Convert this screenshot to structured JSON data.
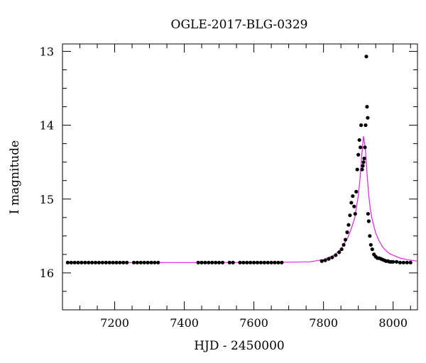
{
  "chart_data": {
    "type": "scatter",
    "title": "OGLE-2017-BLG-0329",
    "xlabel": "HJD - 2450000",
    "ylabel": "I magnitude",
    "xlim": [
      7050,
      8070
    ],
    "ylim": [
      16.5,
      12.9
    ],
    "y_inverted": true,
    "x_ticks": [
      7200,
      7400,
      7600,
      7800,
      8000
    ],
    "x_tick_labels": [
      "7200",
      "7400",
      "7600",
      "7800",
      "8000"
    ],
    "y_ticks": [
      13,
      14,
      15,
      16
    ],
    "y_tick_labels": [
      "13",
      "14",
      "15",
      "16"
    ],
    "grid": false,
    "colors": {
      "data": "#000000",
      "model": "#e020e0"
    },
    "series": [
      {
        "kind": "points",
        "x": [
          7065,
          7075,
          7085,
          7095,
          7105,
          7115,
          7125,
          7135,
          7145,
          7155,
          7165,
          7175,
          7185,
          7195,
          7205,
          7215,
          7225,
          7235,
          7255,
          7265,
          7275,
          7285,
          7295,
          7305,
          7315,
          7325,
          7440,
          7450,
          7460,
          7470,
          7480,
          7490,
          7500,
          7510,
          7530,
          7540,
          7560,
          7570,
          7580,
          7590,
          7600,
          7610,
          7620,
          7630,
          7640,
          7650,
          7660,
          7670,
          7680,
          7795,
          7805,
          7815,
          7825,
          7835,
          7845,
          7852,
          7858,
          7863,
          7868,
          7872,
          7876,
          7880,
          7884,
          7888,
          7891,
          7894,
          7897,
          7900,
          7903,
          7906,
          7908,
          7911,
          7913,
          7915,
          7917,
          7919,
          7921,
          7923,
          7925,
          7927,
          7928,
          7930,
          7933,
          7936,
          7940,
          7945,
          7950,
          7955,
          7960,
          7965,
          7970,
          7975,
          7980,
          7985,
          7990,
          7995,
          8000,
          8010,
          8020,
          8030,
          8040,
          8050
        ],
        "y": [
          15.86,
          15.86,
          15.86,
          15.86,
          15.86,
          15.86,
          15.86,
          15.86,
          15.86,
          15.86,
          15.86,
          15.86,
          15.86,
          15.86,
          15.86,
          15.86,
          15.86,
          15.86,
          15.86,
          15.86,
          15.86,
          15.86,
          15.86,
          15.86,
          15.86,
          15.86,
          15.86,
          15.86,
          15.86,
          15.86,
          15.86,
          15.86,
          15.86,
          15.86,
          15.86,
          15.86,
          15.86,
          15.86,
          15.86,
          15.86,
          15.86,
          15.86,
          15.86,
          15.86,
          15.86,
          15.86,
          15.86,
          15.86,
          15.86,
          15.84,
          15.83,
          15.81,
          15.79,
          15.76,
          15.72,
          15.68,
          15.62,
          15.55,
          15.45,
          15.35,
          15.22,
          15.05,
          14.96,
          15.1,
          15.2,
          14.9,
          14.6,
          14.4,
          14.2,
          14.3,
          14.0,
          14.6,
          14.55,
          14.5,
          14.45,
          14.3,
          14.0,
          13.07,
          13.75,
          13.9,
          15.2,
          15.3,
          15.5,
          15.62,
          15.68,
          15.75,
          15.78,
          15.8,
          15.8,
          15.81,
          15.82,
          15.83,
          15.84,
          15.84,
          15.85,
          15.85,
          15.85,
          15.85,
          15.86,
          15.86,
          15.86,
          15.86
        ]
      },
      {
        "kind": "line",
        "x": [
          7060,
          7200,
          7400,
          7600,
          7700,
          7760,
          7800,
          7830,
          7850,
          7870,
          7880,
          7890,
          7900,
          7905,
          7910,
          7915,
          7920,
          7925,
          7930,
          7935,
          7940,
          7950,
          7960,
          7970,
          7980,
          7990,
          8000,
          8020,
          8040,
          8070
        ],
        "y": [
          15.86,
          15.86,
          15.86,
          15.86,
          15.855,
          15.85,
          15.82,
          15.76,
          15.68,
          15.52,
          15.4,
          15.25,
          14.95,
          14.72,
          14.4,
          14.15,
          14.3,
          14.65,
          14.95,
          15.15,
          15.28,
          15.46,
          15.57,
          15.65,
          15.7,
          15.74,
          15.76,
          15.8,
          15.82,
          15.84
        ]
      }
    ]
  }
}
